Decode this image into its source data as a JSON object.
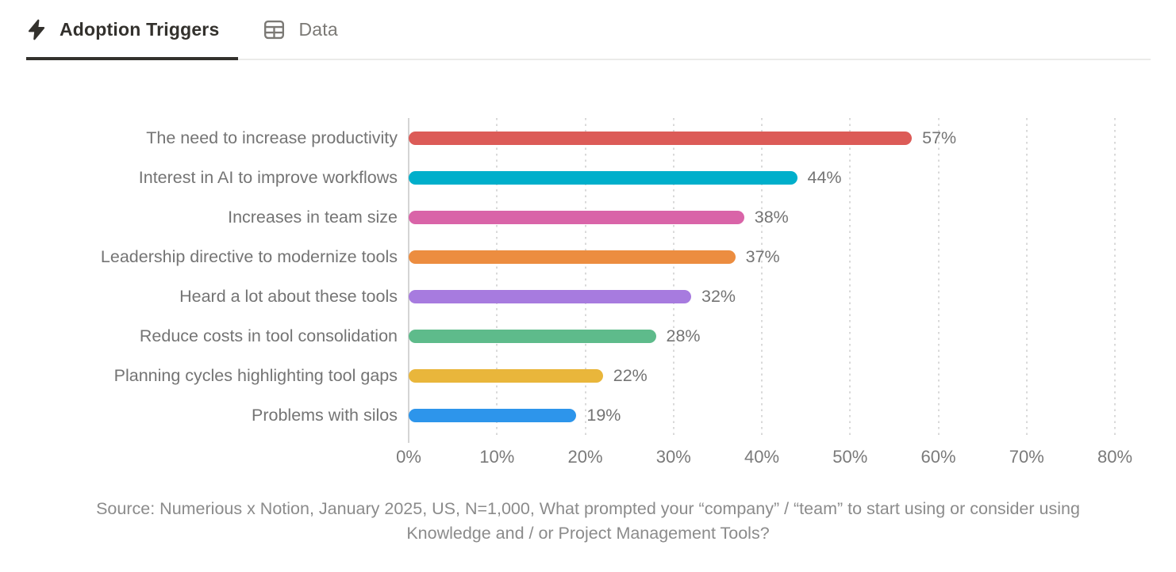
{
  "tabs": [
    {
      "label": "Adoption Triggers",
      "icon": "bolt-icon",
      "active": true
    },
    {
      "label": "Data",
      "icon": "table-icon",
      "active": false
    }
  ],
  "colors": {
    "active_tab_text": "#33312d",
    "inactive_tab_text": "#7b7975",
    "label_text": "#747474",
    "source_text": "#8b8b8b",
    "gridline": "#d9d9d9"
  },
  "chart_data": {
    "type": "bar",
    "orientation": "horizontal",
    "title": "Adoption Triggers",
    "categories": [
      "The need to increase productivity",
      "Interest in AI to improve workflows",
      "Increases in team size",
      "Leadership directive to modernize tools",
      "Heard a lot about these tools",
      "Reduce costs in tool consolidation",
      "Planning cycles highlighting tool gaps",
      "Problems with silos"
    ],
    "values": [
      57,
      44,
      38,
      37,
      32,
      28,
      22,
      19
    ],
    "value_labels": [
      "57%",
      "44%",
      "38%",
      "37%",
      "32%",
      "28%",
      "22%",
      "19%"
    ],
    "bar_colors": [
      "#dc5b57",
      "#00afcb",
      "#d964a8",
      "#ec8d40",
      "#a77bdf",
      "#5ebb8b",
      "#e9b63b",
      "#2d95eb"
    ],
    "x_ticks": [
      "0%",
      "10%",
      "20%",
      "30%",
      "40%",
      "50%",
      "60%",
      "70%",
      "80%"
    ],
    "xlim": [
      0,
      80
    ],
    "xlabel": "",
    "ylabel": "",
    "grid": "vertical-dotted",
    "legend": "none"
  },
  "source": {
    "text": "Source: Numerious x Notion, January 2025, US, N=1,000, What prompted your “company” / “team” to start using or consider using Knowledge and / or Project Management Tools?"
  }
}
